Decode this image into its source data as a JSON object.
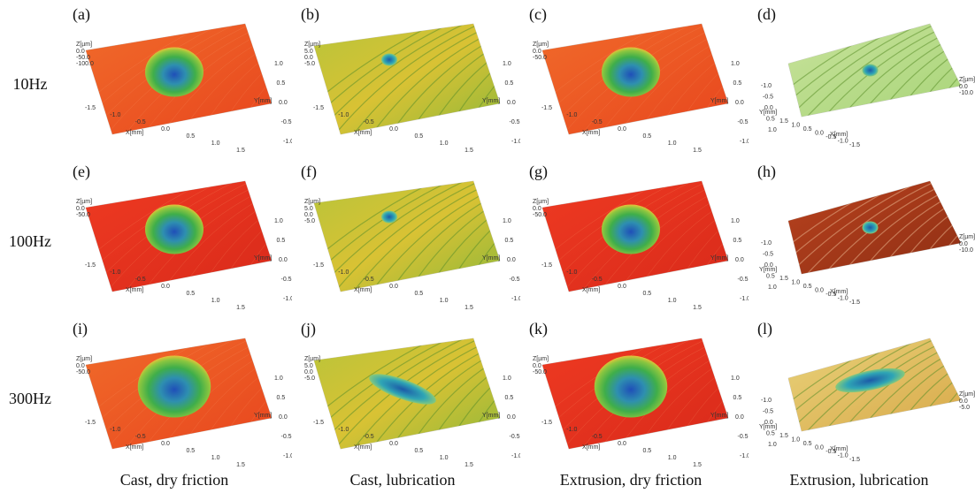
{
  "rows": [
    "10Hz",
    "100Hz",
    "300Hz"
  ],
  "columns": [
    "Cast, dry friction",
    "Cast, lubrication",
    "Extrusion, dry friction",
    "Extrusion, lubrication"
  ],
  "axis_labels": {
    "x": "X[mm]",
    "y": "Y[mm]",
    "z": "Z[µm]"
  },
  "panels": [
    {
      "label": "(a)",
      "z_ticks": [
        "0.0",
        "-50.0",
        "-100.0"
      ],
      "x_ticks": [
        "-1.5",
        "-1.0",
        "-0.5",
        "0.0",
        "0.5",
        "1.0",
        "1.5"
      ],
      "y_ticks": [
        "1.0",
        "0.5",
        "0.0",
        "-0.5",
        "-1.0"
      ]
    },
    {
      "label": "(b)",
      "z_ticks": [
        "5.0",
        "0.0",
        "-5.0"
      ],
      "x_ticks": [
        "-1.5",
        "-1.0",
        "-0.5",
        "0.0",
        "0.5",
        "1.0",
        "1.5"
      ],
      "y_ticks": [
        "1.0",
        "0.5",
        "0.0",
        "-0.5",
        "-1.0"
      ]
    },
    {
      "label": "(c)",
      "z_ticks": [
        "0.0",
        "-50.0"
      ],
      "x_ticks": [
        "-1.5",
        "-1.0",
        "-0.5",
        "0.0",
        "0.5",
        "1.0",
        "1.5"
      ],
      "y_ticks": [
        "1.0",
        "0.5",
        "0.0",
        "-0.5",
        "-1.0"
      ]
    },
    {
      "label": "(d)",
      "z_ticks": [
        "0.0",
        "-10.0"
      ],
      "x_ticks": [
        "1.5",
        "1.0",
        "0.5",
        "0.0",
        "-0.5",
        "-1.0",
        "-1.5"
      ],
      "y_ticks": [
        "-1.0",
        "-0.5",
        "0.0",
        "0.5",
        "1.0"
      ]
    },
    {
      "label": "(e)",
      "z_ticks": [
        "0.0",
        "-50.0"
      ],
      "x_ticks": [
        "-1.5",
        "-1.0",
        "-0.5",
        "0.0",
        "0.5",
        "1.0",
        "1.5"
      ],
      "y_ticks": [
        "1.0",
        "0.5",
        "0.0",
        "-0.5",
        "-1.0"
      ]
    },
    {
      "label": "(f)",
      "z_ticks": [
        "5.0",
        "0.0",
        "-5.0"
      ],
      "x_ticks": [
        "-1.5",
        "-1.0",
        "-0.5",
        "0.0",
        "0.5",
        "1.0",
        "1.5"
      ],
      "y_ticks": [
        "1.0",
        "0.5",
        "0.0",
        "-0.5",
        "-1.0"
      ]
    },
    {
      "label": "(g)",
      "z_ticks": [
        "0.0",
        "-50.0"
      ],
      "x_ticks": [
        "-1.5",
        "-1.0",
        "-0.5",
        "0.0",
        "0.5",
        "1.0",
        "1.5"
      ],
      "y_ticks": [
        "1.0",
        "0.5",
        "0.0",
        "-0.5",
        "-1.0"
      ]
    },
    {
      "label": "(h)",
      "z_ticks": [
        "0.0",
        "-10.0"
      ],
      "x_ticks": [
        "1.5",
        "1.0",
        "0.5",
        "0.0",
        "-0.5",
        "-1.0",
        "-1.5"
      ],
      "y_ticks": [
        "-1.0",
        "-0.5",
        "0.0",
        "0.5",
        "1.0"
      ]
    },
    {
      "label": "(i)",
      "z_ticks": [
        "0.0",
        "-50.0"
      ],
      "x_ticks": [
        "-1.5",
        "-1.0",
        "-0.5",
        "0.0",
        "0.5",
        "1.0",
        "1.5"
      ],
      "y_ticks": [
        "1.0",
        "0.5",
        "0.0",
        "-0.5",
        "-1.0"
      ]
    },
    {
      "label": "(j)",
      "z_ticks": [
        "5.0",
        "0.0",
        "-5.0"
      ],
      "x_ticks": [
        "-1.5",
        "-1.0",
        "-0.5",
        "0.0",
        "0.5",
        "1.0",
        "1.5"
      ],
      "y_ticks": [
        "1.0",
        "0.5",
        "0.0",
        "-0.5",
        "-1.0"
      ]
    },
    {
      "label": "(k)",
      "z_ticks": [
        "0.0",
        "-50.0"
      ],
      "x_ticks": [
        "-1.5",
        "-1.0",
        "-0.5",
        "0.0",
        "0.5",
        "1.0",
        "1.5"
      ],
      "y_ticks": [
        "1.0",
        "0.5",
        "0.0",
        "-0.5",
        "-1.0"
      ]
    },
    {
      "label": "(l)",
      "z_ticks": [
        "0.0",
        "-5.0"
      ],
      "x_ticks": [
        "1.5",
        "1.0",
        "0.5",
        "0.0",
        "-0.5",
        "-1.0",
        "-1.5"
      ],
      "y_ticks": [
        "-1.0",
        "-0.5",
        "0.0",
        "0.5",
        "1.0"
      ]
    }
  ]
}
